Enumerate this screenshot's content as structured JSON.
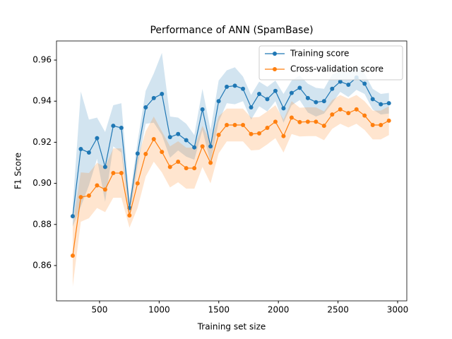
{
  "chart_data": {
    "type": "line",
    "title": "Performance of ANN (SpamBase)",
    "x_label": "Training set size",
    "y_label": "F1 Score",
    "x": [
      275,
      343,
      411,
      479,
      547,
      615,
      683,
      751,
      819,
      887,
      955,
      1023,
      1091,
      1159,
      1227,
      1295,
      1363,
      1431,
      1499,
      1567,
      1635,
      1703,
      1771,
      1839,
      1907,
      1975,
      2043,
      2111,
      2179,
      2247,
      2315,
      2383,
      2451,
      2519,
      2587,
      2655,
      2723,
      2791,
      2859,
      2927
    ],
    "series": [
      {
        "name": "Training score",
        "color": "#1f77b4",
        "values": [
          0.884,
          0.9167,
          0.915,
          0.922,
          0.908,
          0.928,
          0.927,
          0.888,
          0.9145,
          0.937,
          0.9415,
          0.9435,
          0.9225,
          0.924,
          0.921,
          0.9175,
          0.936,
          0.918,
          0.94,
          0.947,
          0.9475,
          0.946,
          0.937,
          0.9435,
          0.941,
          0.945,
          0.9365,
          0.944,
          0.9465,
          0.9415,
          0.9395,
          0.94,
          0.946,
          0.9495,
          0.948,
          0.9515,
          0.9485,
          0.941,
          0.9385,
          0.939
        ],
        "std": [
          0.005,
          0.028,
          0.016,
          0.01,
          0.017,
          0.01,
          0.012,
          0.004,
          0.006,
          0.008,
          0.012,
          0.02,
          0.01,
          0.008,
          0.008,
          0.006,
          0.01,
          0.008,
          0.01,
          0.008,
          0.009,
          0.006,
          0.006,
          0.006,
          0.006,
          0.005,
          0.007,
          0.006,
          0.006,
          0.007,
          0.007,
          0.006,
          0.007,
          0.005,
          0.006,
          0.006,
          0.005,
          0.005,
          0.005,
          0.005
        ]
      },
      {
        "name": "Cross-validation score",
        "color": "#ff7f0e",
        "values": [
          0.8648,
          0.8933,
          0.894,
          0.899,
          0.897,
          0.905,
          0.905,
          0.8844,
          0.9,
          0.9143,
          0.9215,
          0.9153,
          0.908,
          0.9105,
          0.9074,
          0.9074,
          0.918,
          0.91,
          0.9236,
          0.9284,
          0.9284,
          0.9284,
          0.924,
          0.9243,
          0.927,
          0.93,
          0.923,
          0.932,
          0.9298,
          0.93,
          0.93,
          0.928,
          0.9335,
          0.936,
          0.9342,
          0.936,
          0.933,
          0.9284,
          0.9284,
          0.9305
        ],
        "std": [
          0.015,
          0.012,
          0.011,
          0.011,
          0.011,
          0.012,
          0.012,
          0.006,
          0.012,
          0.011,
          0.011,
          0.01,
          0.01,
          0.01,
          0.01,
          0.01,
          0.01,
          0.01,
          0.009,
          0.008,
          0.008,
          0.008,
          0.008,
          0.008,
          0.008,
          0.008,
          0.008,
          0.008,
          0.007,
          0.007,
          0.007,
          0.007,
          0.007,
          0.007,
          0.007,
          0.007,
          0.007,
          0.007,
          0.007,
          0.007
        ]
      }
    ],
    "xlim": [
      139,
      3077
    ],
    "ylim": [
      0.8428,
      0.9693
    ],
    "xticks": [
      500,
      1000,
      1500,
      2000,
      2500,
      3000
    ],
    "yticks": [
      0.86,
      0.88,
      {
        "value": 0.9,
        "label": "0.90"
      },
      0.92,
      0.94,
      0.96
    ],
    "legend": "upper right",
    "grid": false
  }
}
